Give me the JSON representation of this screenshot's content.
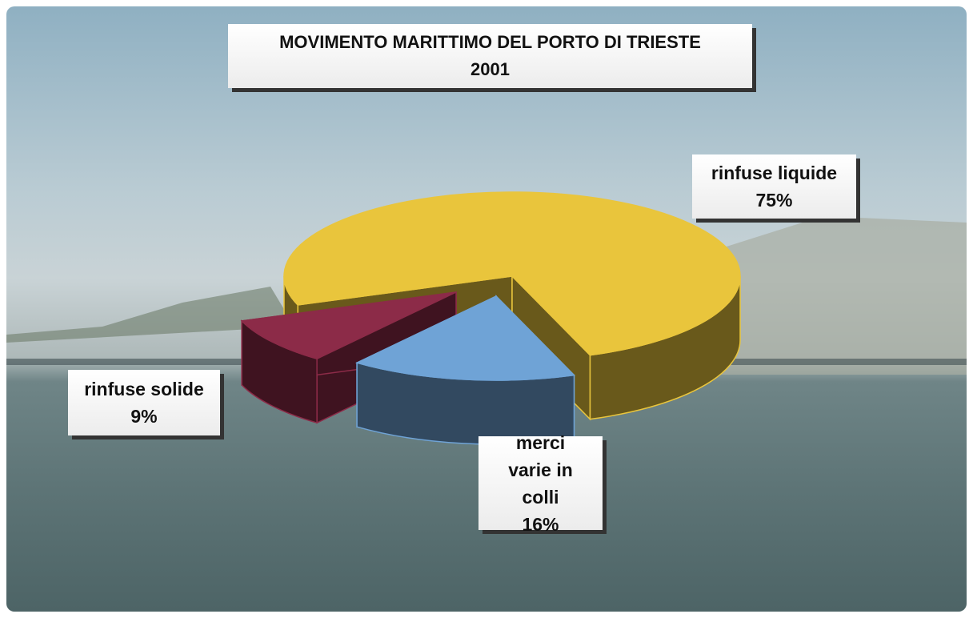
{
  "chart_data": {
    "type": "pie3d",
    "title": "MOVIMENTO MARITTIMO DEL PORTO DI TRIESTE",
    "subtitle": "2001",
    "categories": [
      "rinfuse liquide",
      "merci varie in colli",
      "rinfuse solide"
    ],
    "values": [
      75,
      16,
      9
    ],
    "value_labels": [
      "75%",
      "16%",
      "9%"
    ],
    "colors": [
      "#e9c53c",
      "#6fa3d6",
      "#8c2b48"
    ]
  }
}
